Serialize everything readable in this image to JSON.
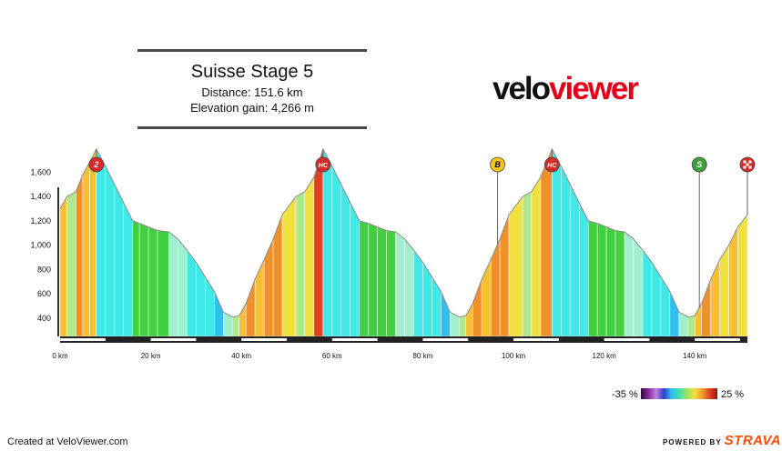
{
  "header": {
    "title": "Suisse Stage 5",
    "distance_line": "Distance: 151.6 km",
    "elevation_line": "Elevation gain: 4,266 m"
  },
  "logo": {
    "part1": "velo",
    "part2": "viewer",
    "color_dark": "#111111",
    "color_red": "#e2001a"
  },
  "legend": {
    "min_label": "-35 %",
    "max_label": "25 %"
  },
  "footer": {
    "created": "Created at VeloViewer.com",
    "powered": "POWERED BY",
    "brand": "STRAVA",
    "brand_color": "#fc4c02"
  },
  "chart_data": {
    "type": "area",
    "title": "Suisse Stage 5",
    "xlabel": "",
    "ylabel": "",
    "x_unit": "km",
    "y_unit": "m",
    "xlim": [
      0,
      151.6
    ],
    "ylim": [
      250,
      1820
    ],
    "x_ticks": [
      0,
      20,
      40,
      60,
      80,
      100,
      120,
      140
    ],
    "x_tick_labels": [
      "0 km",
      "20 km",
      "40 km",
      "60 km",
      "80 km",
      "100 km",
      "120 km",
      "140 km"
    ],
    "y_ticks": [
      400,
      600,
      800,
      1000,
      1200,
      1400,
      1600
    ],
    "y_tick_labels": [
      "400",
      "600",
      "800",
      "1,000",
      "1,200",
      "1,400",
      "1,600"
    ],
    "grid": false,
    "profile": [
      {
        "x": 0,
        "y": 1300
      },
      {
        "x": 1.5,
        "y": 1400
      },
      {
        "x": 3.5,
        "y": 1440
      },
      {
        "x": 5,
        "y": 1580
      },
      {
        "x": 6.5,
        "y": 1680
      },
      {
        "x": 8,
        "y": 1790
      },
      {
        "x": 10,
        "y": 1650
      },
      {
        "x": 12,
        "y": 1500
      },
      {
        "x": 14,
        "y": 1350
      },
      {
        "x": 16,
        "y": 1200
      },
      {
        "x": 17.5,
        "y": 1180
      },
      {
        "x": 19.5,
        "y": 1150
      },
      {
        "x": 21.5,
        "y": 1120
      },
      {
        "x": 24,
        "y": 1110
      },
      {
        "x": 26,
        "y": 1050
      },
      {
        "x": 28,
        "y": 960
      },
      {
        "x": 30,
        "y": 860
      },
      {
        "x": 32,
        "y": 740
      },
      {
        "x": 34,
        "y": 620
      },
      {
        "x": 36,
        "y": 450
      },
      {
        "x": 38,
        "y": 410
      },
      {
        "x": 39.5,
        "y": 420
      },
      {
        "x": 41,
        "y": 520
      },
      {
        "x": 43,
        "y": 720
      },
      {
        "x": 45,
        "y": 880
      },
      {
        "x": 47,
        "y": 1050
      },
      {
        "x": 49,
        "y": 1250
      },
      {
        "x": 52,
        "y": 1400
      },
      {
        "x": 54,
        "y": 1440
      },
      {
        "x": 56,
        "y": 1560
      },
      {
        "x": 58,
        "y": 1790
      },
      {
        "x": 60,
        "y": 1650
      },
      {
        "x": 62,
        "y": 1500
      },
      {
        "x": 64,
        "y": 1350
      },
      {
        "x": 66,
        "y": 1200
      },
      {
        "x": 68,
        "y": 1180
      },
      {
        "x": 70,
        "y": 1150
      },
      {
        "x": 72,
        "y": 1120
      },
      {
        "x": 74,
        "y": 1110
      },
      {
        "x": 76,
        "y": 1050
      },
      {
        "x": 78,
        "y": 960
      },
      {
        "x": 80,
        "y": 860
      },
      {
        "x": 82,
        "y": 740
      },
      {
        "x": 84,
        "y": 620
      },
      {
        "x": 86,
        "y": 450
      },
      {
        "x": 88,
        "y": 410
      },
      {
        "x": 89.5,
        "y": 420
      },
      {
        "x": 91,
        "y": 520
      },
      {
        "x": 93,
        "y": 720
      },
      {
        "x": 95,
        "y": 880
      },
      {
        "x": 97,
        "y": 1050
      },
      {
        "x": 99,
        "y": 1250
      },
      {
        "x": 102,
        "y": 1400
      },
      {
        "x": 104,
        "y": 1440
      },
      {
        "x": 106,
        "y": 1560
      },
      {
        "x": 108.5,
        "y": 1790
      },
      {
        "x": 110.5,
        "y": 1650
      },
      {
        "x": 112.5,
        "y": 1500
      },
      {
        "x": 114.5,
        "y": 1350
      },
      {
        "x": 116.5,
        "y": 1200
      },
      {
        "x": 118.5,
        "y": 1180
      },
      {
        "x": 120.5,
        "y": 1150
      },
      {
        "x": 122.5,
        "y": 1120
      },
      {
        "x": 124.5,
        "y": 1110
      },
      {
        "x": 126.5,
        "y": 1050
      },
      {
        "x": 128.5,
        "y": 960
      },
      {
        "x": 130.5,
        "y": 860
      },
      {
        "x": 132.5,
        "y": 740
      },
      {
        "x": 134.5,
        "y": 620
      },
      {
        "x": 136.5,
        "y": 450
      },
      {
        "x": 138.5,
        "y": 410
      },
      {
        "x": 140,
        "y": 420
      },
      {
        "x": 141.5,
        "y": 520
      },
      {
        "x": 143.5,
        "y": 720
      },
      {
        "x": 145.5,
        "y": 880
      },
      {
        "x": 147.5,
        "y": 1000
      },
      {
        "x": 149.5,
        "y": 1150
      },
      {
        "x": 151.6,
        "y": 1250
      }
    ],
    "markers": [
      {
        "x": 8,
        "label": "2",
        "color": "#d62b2b",
        "text_color": "#ffffff"
      },
      {
        "x": 58,
        "label": "HC",
        "color": "#d62b2b",
        "text_color": "#ffffff"
      },
      {
        "x": 96.5,
        "label": "B",
        "color": "#f5c518",
        "text_color": "#111111"
      },
      {
        "x": 108.5,
        "label": "HC",
        "color": "#d62b2b",
        "text_color": "#ffffff"
      },
      {
        "x": 141,
        "label": "S",
        "color": "#3aa13a",
        "text_color": "#ffffff"
      },
      {
        "x": 151.6,
        "label": "finish",
        "color": "#d62b2b",
        "text_color": "#ffffff"
      }
    ]
  }
}
